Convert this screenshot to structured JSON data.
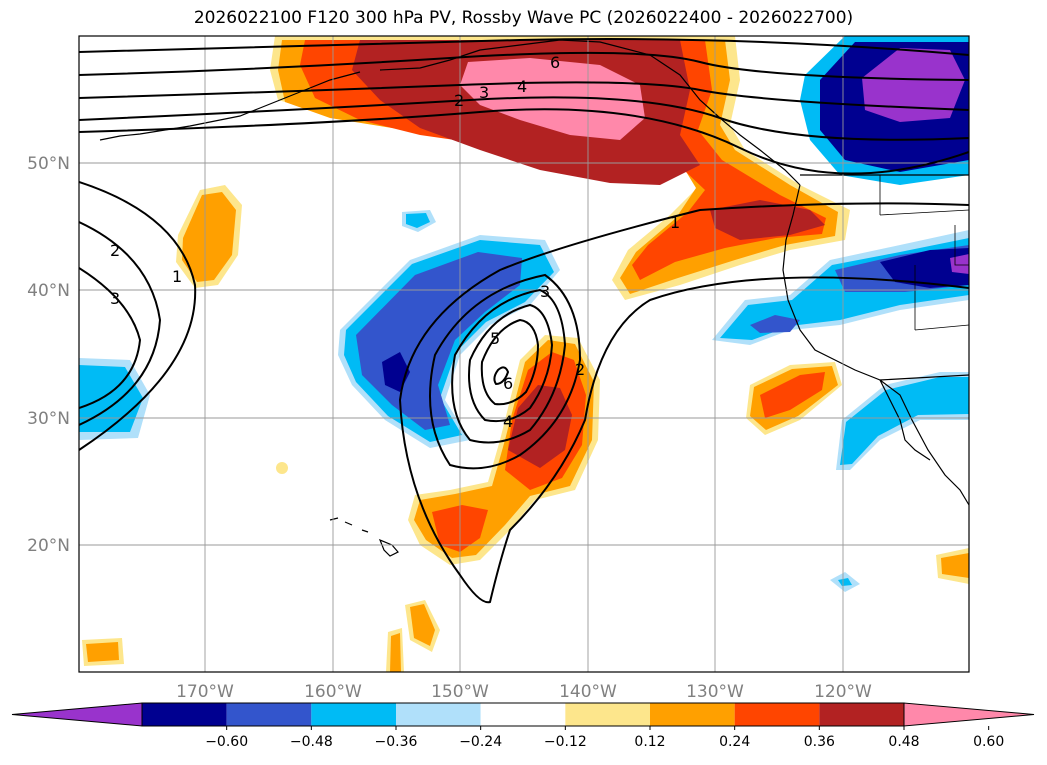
{
  "title": "2026022100 F120 300 hPa PV, Rossby Wave PC (2026022400 - 2026022700)",
  "map": {
    "lat_labels": [
      "50°N",
      "40°N",
      "30°N",
      "20°N"
    ],
    "lon_labels": [
      "170°W",
      "160°W",
      "150°W",
      "140°W",
      "130°W",
      "120°W"
    ],
    "contour_labels": [
      "6",
      "4",
      "3",
      "2",
      "1",
      "2",
      "3",
      "1",
      "3",
      "5",
      "6",
      "4",
      "2"
    ]
  },
  "colorbar": {
    "tick_labels": [
      "−0.60",
      "−0.48",
      "−0.36",
      "−0.24",
      "−0.12",
      "0.12",
      "0.24",
      "0.36",
      "0.48",
      "0.60"
    ],
    "colors": [
      "#9933cc",
      "#000090",
      "#3355cc",
      "#00bbf5",
      "#b0e0fa",
      "#ffffff",
      "#fde68c",
      "#ffa000",
      "#ff4500",
      "#b22222",
      "#ff88aa"
    ]
  }
}
